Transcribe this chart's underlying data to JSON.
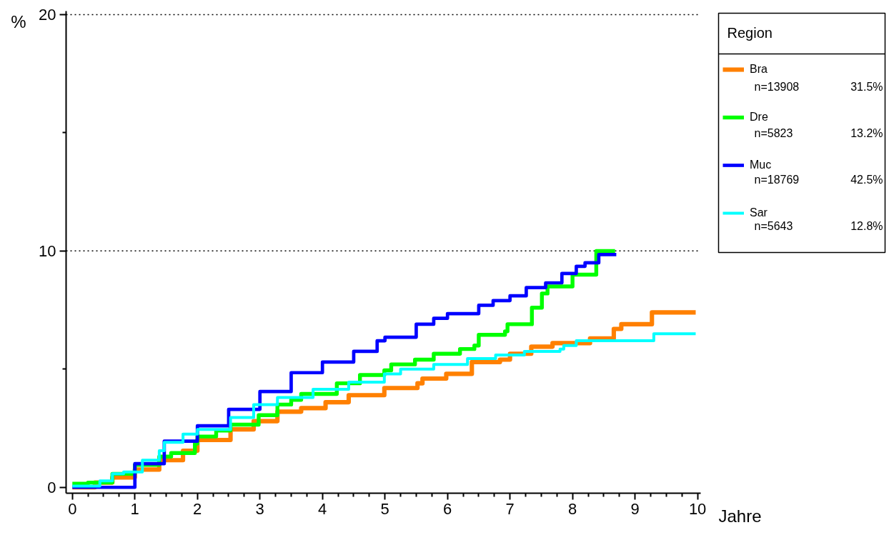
{
  "chart_data": {
    "type": "step",
    "ylabel": "%",
    "xlabel": "Jahre",
    "legend_title": "Region",
    "legend": "top right",
    "line_style": "solid",
    "marker": "none",
    "grid": false,
    "xlim": [
      -0.1,
      10.05
    ],
    "ylim": [
      -0.25,
      20.15
    ],
    "xticks": [
      0,
      1,
      2,
      3,
      4,
      5,
      6,
      7,
      8,
      9,
      10,
      {
        "value": 0.25,
        "label": null
      },
      {
        "value": 0.5,
        "label": null
      },
      {
        "value": 0.75,
        "label": null
      },
      {
        "value": 1.25,
        "label": null
      },
      {
        "value": 1.5,
        "label": null
      },
      {
        "value": 1.75,
        "label": null
      },
      {
        "value": 2.25,
        "label": null
      },
      {
        "value": 2.5,
        "label": null
      },
      {
        "value": 2.75,
        "label": null
      },
      {
        "value": 3.25,
        "label": null
      },
      {
        "value": 3.5,
        "label": null
      },
      {
        "value": 3.75,
        "label": null
      },
      {
        "value": 4.25,
        "label": null
      },
      {
        "value": 4.5,
        "label": null
      },
      {
        "value": 4.75,
        "label": null
      },
      {
        "value": 5.25,
        "label": null
      },
      {
        "value": 5.5,
        "label": null
      },
      {
        "value": 5.75,
        "label": null
      },
      {
        "value": 6.25,
        "label": null
      },
      {
        "value": 6.5,
        "label": null
      },
      {
        "value": 6.75,
        "label": null
      },
      {
        "value": 7.25,
        "label": null
      },
      {
        "value": 7.5,
        "label": null
      },
      {
        "value": 7.75,
        "label": null
      },
      {
        "value": 8.25,
        "label": null
      },
      {
        "value": 8.5,
        "label": null
      },
      {
        "value": 8.75,
        "label": null
      },
      {
        "value": 9.25,
        "label": null
      },
      {
        "value": 9.5,
        "label": null
      },
      {
        "value": 9.75,
        "label": null
      }
    ],
    "yticks": [
      0,
      10,
      20,
      {
        "value": 5,
        "label": null
      },
      {
        "value": 15,
        "label": null
      }
    ],
    "ref_lines": [
      {
        "axis": "y",
        "value": 10,
        "label": null,
        "color": "#000000",
        "line_style": "dotted"
      },
      {
        "axis": "y",
        "value": 20,
        "label": null,
        "color": "#000000",
        "line_style": "dotted"
      }
    ],
    "series": [
      {
        "name": "Bra",
        "color": "#ff8000",
        "x": [
          0,
          0.36,
          0.64,
          1.0,
          1.39,
          1.77,
          2.0,
          2.53,
          2.9,
          3.28,
          3.66,
          4.05,
          4.42,
          4.99,
          5.52,
          5.6,
          5.98,
          6.39,
          6.84,
          7.0,
          7.34,
          7.68,
          8.28,
          8.66,
          8.78,
          9.27,
          9.97
        ],
        "values": [
          0,
          0.2,
          0.42,
          0.75,
          1.15,
          1.55,
          2.0,
          2.45,
          2.8,
          3.2,
          3.35,
          3.6,
          3.9,
          4.2,
          4.4,
          4.6,
          4.8,
          5.3,
          5.4,
          5.65,
          5.95,
          6.1,
          6.3,
          6.7,
          6.9,
          7.4,
          7.4
        ]
      },
      {
        "name": "Dre",
        "color": "#00ff00",
        "x": [
          0,
          0.25,
          0.64,
          1.0,
          1.39,
          1.58,
          1.96,
          2.0,
          2.3,
          2.53,
          2.98,
          3.28,
          3.5,
          3.66,
          4.23,
          4.6,
          4.99,
          5.1,
          5.48,
          5.78,
          6.2,
          6.43,
          6.5,
          6.92,
          6.96,
          7.35,
          7.51,
          7.6,
          8.0,
          8.38,
          8.68
        ],
        "values": [
          0.15,
          0.2,
          0.57,
          0.95,
          1.3,
          1.45,
          1.85,
          2.15,
          2.4,
          2.65,
          3.05,
          3.5,
          3.7,
          3.95,
          4.4,
          4.75,
          4.95,
          5.2,
          5.4,
          5.65,
          5.85,
          6.0,
          6.45,
          6.6,
          6.9,
          7.6,
          8.2,
          8.5,
          9.0,
          10.0,
          10.0
        ]
      },
      {
        "name": "Muc",
        "color": "#0000ff",
        "x": [
          0,
          1.0,
          1.47,
          2.0,
          2.5,
          3.0,
          3.5,
          4.0,
          4.5,
          4.875,
          5.0,
          5.5,
          5.78,
          6.0,
          6.5,
          6.73,
          7.0,
          7.26,
          7.57,
          7.83,
          8.06,
          8.2,
          8.42,
          8.7
        ],
        "values": [
          0,
          1.0,
          1.95,
          2.6,
          3.3,
          4.05,
          4.85,
          5.3,
          5.75,
          6.2,
          6.35,
          6.9,
          7.15,
          7.35,
          7.7,
          7.9,
          8.1,
          8.45,
          8.65,
          9.05,
          9.35,
          9.5,
          9.85,
          9.85
        ]
      },
      {
        "name": "Sar",
        "color": "#00ffff",
        "x": [
          0,
          0.44,
          0.64,
          0.82,
          1.12,
          1.39,
          1.47,
          1.77,
          2.0,
          2.53,
          2.9,
          3.28,
          3.85,
          4.42,
          4.99,
          5.25,
          5.78,
          6.32,
          6.77,
          7.23,
          7.8,
          7.86,
          8.06,
          9.3,
          9.97
        ],
        "values": [
          0.05,
          0.27,
          0.57,
          0.65,
          1.15,
          1.55,
          1.9,
          2.25,
          2.45,
          2.95,
          3.5,
          3.8,
          4.15,
          4.45,
          4.8,
          5.0,
          5.2,
          5.45,
          5.6,
          5.75,
          5.85,
          6.0,
          6.2,
          6.5,
          6.5
        ]
      }
    ],
    "annotations": [
      "n=13908",
      "31.5%",
      "n=5823",
      "13.2%",
      "n=18769",
      "42.5%",
      "n=5643",
      "12.8%"
    ]
  }
}
